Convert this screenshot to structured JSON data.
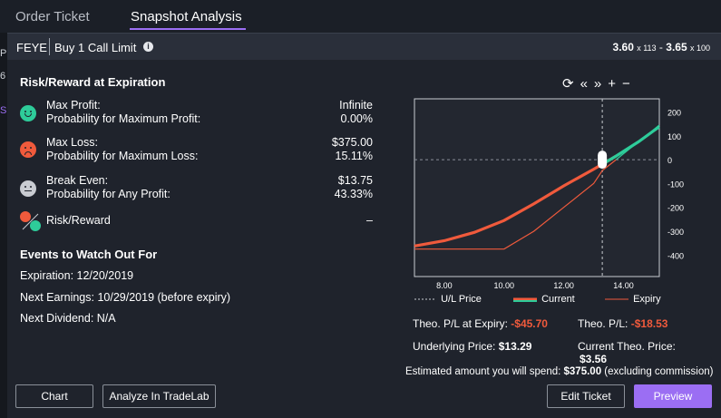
{
  "tabs": [
    {
      "label": "Order Ticket"
    },
    {
      "label": "Snapshot Analysis"
    }
  ],
  "order": {
    "symbol": "FEYE",
    "description": "Buy 1 Call Limit",
    "bid": "3.60",
    "bid_size": "x 113",
    "sep": "-",
    "ask": "3.65",
    "ask_size": "x 100"
  },
  "edge_text": [
    "Pr",
    "6",
    "S"
  ],
  "risk": {
    "heading": "Risk/Reward at Expiration",
    "max_profit_label": "Max Profit:",
    "max_profit": "Infinite",
    "prob_max_profit_label": "Probability for Maximum Profit:",
    "prob_max_profit": "0.00%",
    "max_loss_label": "Max Loss:",
    "max_loss": "$375.00",
    "prob_max_loss_label": "Probability for Maximum Loss:",
    "prob_max_loss": "15.11%",
    "break_even_label": "Break Even:",
    "break_even": "$13.75",
    "prob_any_profit_label": "Probability for Any Profit:",
    "prob_any_profit": "43.33%",
    "rr_label": "Risk/Reward",
    "rr_value": "–"
  },
  "events": {
    "heading": "Events to Watch Out For",
    "expiration": "Expiration: 12/20/2019",
    "earnings": "Next Earnings: 10/29/2019 (before expiry)",
    "dividend": "Next Dividend: N/A"
  },
  "toolbar_icons": [
    "refresh-icon",
    "double-left-icon",
    "double-right-icon",
    "plus-icon",
    "minus-icon"
  ],
  "chart_data": {
    "type": "line",
    "x_ticks": [
      "8.00",
      "10.00",
      "12.00",
      "14.00"
    ],
    "y_ticks": [
      "200",
      "100",
      "0",
      "-100",
      "-200",
      "-300",
      "-400"
    ],
    "xlim": [
      7.0,
      15.2
    ],
    "ylim": [
      -490,
      255
    ],
    "ul_price": 13.29,
    "series": [
      {
        "name": "Current",
        "color": "#f05a3c",
        "x": [
          7.0,
          8.0,
          9.0,
          10.0,
          11.0,
          12.0,
          12.5,
          13.0,
          13.29,
          13.75,
          14.0,
          14.5,
          15.0,
          15.2
        ],
        "y": [
          -362,
          -340,
          -305,
          -255,
          -185,
          -110,
          -75,
          -40,
          -19,
          15,
          35,
          75,
          120,
          138
        ]
      },
      {
        "name": "Expiry",
        "color": "#2ecc9a",
        "x": [
          7.0,
          10.0,
          11.0,
          12.0,
          13.0,
          13.29,
          13.75,
          14.0,
          14.5,
          15.0,
          15.2
        ],
        "y": [
          -375,
          -375,
          -300,
          -200,
          -100,
          -46,
          0,
          25,
          75,
          125,
          145
        ]
      }
    ],
    "legend": [
      "U/L Price",
      "Current",
      "Expiry"
    ]
  },
  "theo": {
    "pl_expiry_label": "Theo. P/L at Expiry:",
    "pl_expiry": "-$45.70",
    "pl_label": "Theo. P/L:",
    "pl": "-$18.53",
    "underlying_label": "Underlying Price:",
    "underlying": "$13.29",
    "current_theo_label": "Current Theo. Price:",
    "current_theo": "$3.56"
  },
  "estimate": {
    "prefix": "Estimated amount you will spend:",
    "amount": "$375.00",
    "suffix": "(excluding commission)"
  },
  "buttons": {
    "chart": "Chart",
    "analyze": "Analyze In TradeLab",
    "edit": "Edit Ticket",
    "preview": "Preview"
  }
}
